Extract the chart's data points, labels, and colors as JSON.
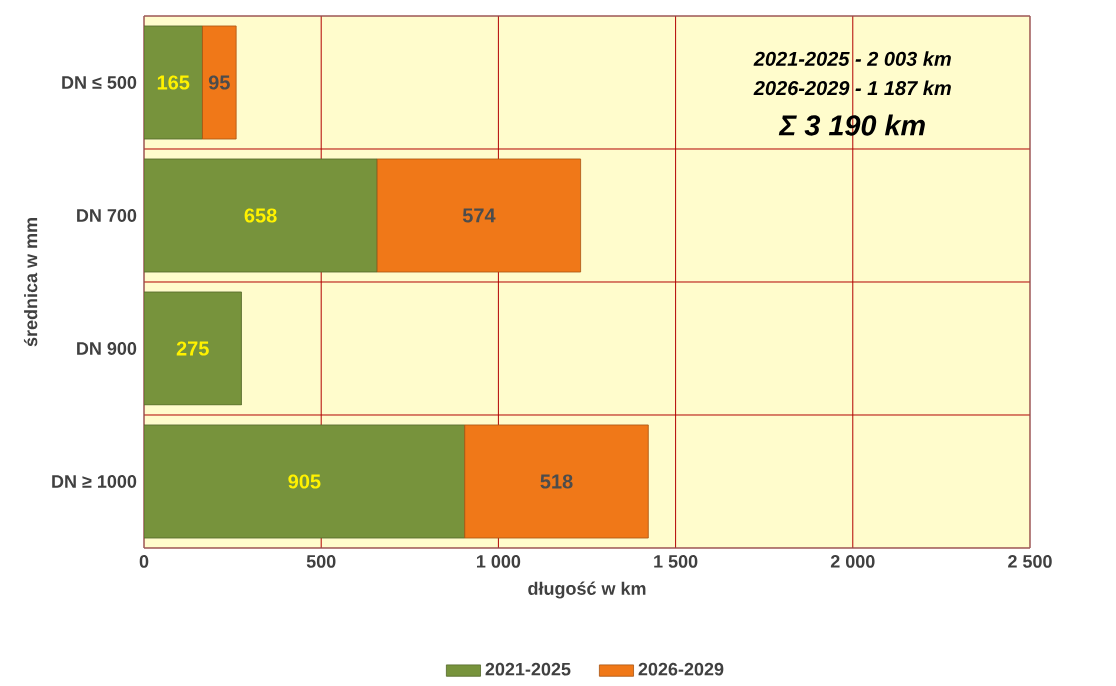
{
  "chart_data": {
    "type": "bar",
    "orientation": "horizontal",
    "stacked": true,
    "categories": [
      "DN ≤ 500",
      "DN 700",
      "DN 900",
      "DN ≥ 1000"
    ],
    "series": [
      {
        "name": "2021-2025",
        "color": "#77933c",
        "values": [
          165,
          658,
          275,
          905
        ]
      },
      {
        "name": "2026-2029",
        "color": "#f07818",
        "values": [
          95,
          574,
          null,
          518
        ]
      }
    ],
    "xlim": [
      0,
      2500
    ],
    "xticks": [
      0,
      500,
      {
        "value": 1000,
        "label": "1 000"
      },
      {
        "value": 1500,
        "label": "1 500"
      },
      {
        "value": 2000,
        "label": "2 000"
      },
      {
        "value": 2500,
        "label": "2 500"
      }
    ],
    "xlabel": "długość w km",
    "ylabel": "średnica w mm",
    "data_labels": true,
    "grid": true,
    "legend": "bottom",
    "annotations": [
      "2021-2025  - 2 003 km",
      "2026-2029  - 1 187 km",
      "Σ 3 190 km"
    ]
  }
}
